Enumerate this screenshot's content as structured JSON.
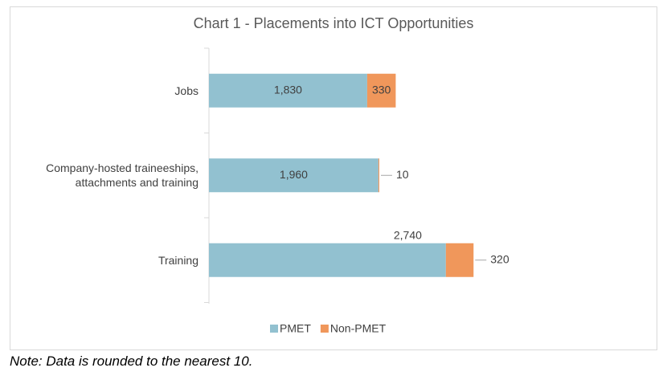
{
  "chart_data": {
    "type": "stacked-bar-horizontal",
    "title": "Chart 1 - Placements into ICT Opportunities",
    "categories": [
      "Jobs",
      "Company-hosted traineeships, attachments and training",
      "Training"
    ],
    "series": [
      {
        "name": "PMET",
        "color": "#92c1d0",
        "values": [
          1830,
          1960,
          2740
        ],
        "value_labels": [
          "1,830",
          "1,960",
          "2,740"
        ]
      },
      {
        "name": "Non-PMET",
        "color": "#f0975b",
        "values": [
          330,
          10,
          320
        ],
        "value_labels": [
          "330",
          "10",
          "320"
        ]
      }
    ],
    "legend": "bottom"
  },
  "note": "Note: Data is rounded to the nearest 10."
}
